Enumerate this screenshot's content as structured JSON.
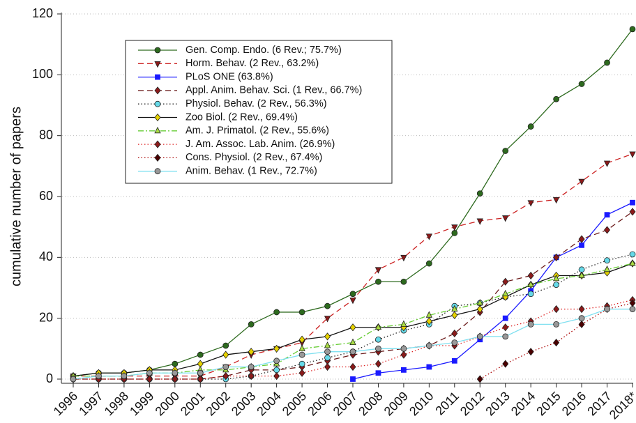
{
  "chart_data": {
    "type": "line",
    "y_label": "cumulative number of papers",
    "categories": [
      "1996",
      "1997",
      "1998",
      "1999",
      "2000",
      "2001",
      "2002",
      "2003",
      "2004",
      "2005",
      "2006",
      "2007",
      "2008",
      "2009",
      "2010",
      "2011",
      "2012",
      "2013",
      "2014",
      "2015",
      "2016",
      "2017",
      "2018*"
    ],
    "ylim": [
      0,
      120
    ],
    "yticks": [
      0,
      20,
      40,
      60,
      80,
      100,
      120
    ],
    "grid": true,
    "legend": "upper left",
    "series": [
      {
        "name": "Gen. Comp. Endo. (6 Rev.; 75.7%)",
        "color": "#2d6a1e",
        "dash": "solid",
        "marker": "circle",
        "marker_color": "#2d6a1e",
        "values": [
          1,
          2,
          2,
          3,
          5,
          8,
          11,
          18,
          22,
          22,
          24,
          28,
          32,
          32,
          38,
          48,
          61,
          75,
          83,
          92,
          97,
          104,
          115
        ]
      },
      {
        "name": "Horm. Behav. (2 Rev., 63.2%)",
        "color": "#cc2222",
        "dash": "dashed",
        "marker": "triangle-down",
        "marker_color": "#8b1a1a",
        "values": [
          1,
          1,
          1,
          1,
          1,
          1,
          4,
          8,
          10,
          12,
          20,
          26,
          36,
          40,
          47,
          50,
          52,
          53,
          58,
          59,
          65,
          71,
          74
        ]
      },
      {
        "name": "PLoS ONE (63.8%)",
        "color": "#1a1aff",
        "dash": "solid",
        "marker": "square",
        "marker_color": "#1a1aff",
        "values": [
          null,
          null,
          null,
          null,
          null,
          null,
          null,
          null,
          null,
          null,
          null,
          0,
          2,
          3,
          4,
          6,
          13,
          20,
          29,
          40,
          44,
          54,
          58
        ]
      },
      {
        "name": "Appl. Anim. Behav. Sci. (1 Rev., 66.7%)",
        "color": "#6b1a1a",
        "dash": "dashed",
        "marker": "diamond",
        "marker_color": "#8b1a1a",
        "values": [
          0,
          0,
          0,
          0,
          0,
          0,
          1,
          3,
          3,
          4,
          6,
          8,
          9,
          10,
          11,
          15,
          22,
          32,
          34,
          40,
          46,
          49,
          55
        ]
      },
      {
        "name": "Physiol. Behav. (2 Rev., 56.3%)",
        "color": "#222222",
        "dash": "dotted",
        "marker": "circle",
        "marker_color": "#66d9e8",
        "values": [
          0,
          0,
          0,
          0,
          0,
          0,
          0,
          1,
          3,
          5,
          7,
          9,
          13,
          16,
          18,
          24,
          25,
          27,
          28,
          31,
          36,
          39,
          41
        ]
      },
      {
        "name": "Zoo Biol. (2 Rev., 69.4%)",
        "color": "#111111",
        "dash": "solid",
        "marker": "diamond",
        "marker_color": "#e6d200",
        "values": [
          1,
          2,
          2,
          3,
          3,
          5,
          8,
          9,
          10,
          13,
          14,
          17,
          17,
          17,
          19,
          21,
          23,
          27,
          31,
          34,
          34,
          35,
          38
        ]
      },
      {
        "name": "Am. J. Primatol. (2 Rev., 55.6%)",
        "color": "#66cc33",
        "dash": "dashdot",
        "marker": "triangle-up",
        "marker_color": "#aadd44",
        "values": [
          1,
          1,
          1,
          2,
          2,
          3,
          3,
          4,
          5,
          10,
          11,
          12,
          17,
          18,
          21,
          23,
          25,
          28,
          31,
          33,
          34,
          36,
          38
        ]
      },
      {
        "name": "J. Am. Assoc. Lab. Anim. (26.9%)",
        "color": "#dd2222",
        "dash": "dotted",
        "marker": "diamond",
        "marker_color": "#8b1a1a",
        "values": [
          0,
          0,
          0,
          0,
          0,
          0,
          1,
          1,
          1,
          2,
          4,
          4,
          5,
          8,
          11,
          11,
          14,
          17,
          19,
          23,
          23,
          24,
          26
        ]
      },
      {
        "name": "Cons. Physiol. (2 Rev., 67.4%)",
        "color": "#aa0000",
        "dash": "dotted",
        "marker": "diamond",
        "marker_color": "#4a0000",
        "values": [
          null,
          null,
          null,
          null,
          null,
          null,
          null,
          null,
          null,
          null,
          null,
          null,
          null,
          null,
          null,
          null,
          0,
          5,
          9,
          12,
          18,
          23,
          25
        ]
      },
      {
        "name": "Anim. Behav. (1 Rev., 72.7%)",
        "color": "#7fe0f0",
        "dash": "solid",
        "marker": "circle",
        "marker_color": "#999999",
        "values": [
          0,
          1,
          1,
          2,
          2,
          2,
          4,
          4,
          6,
          8,
          9,
          9,
          10,
          10,
          11,
          12,
          14,
          14,
          18,
          18,
          20,
          23,
          23
        ]
      }
    ]
  }
}
